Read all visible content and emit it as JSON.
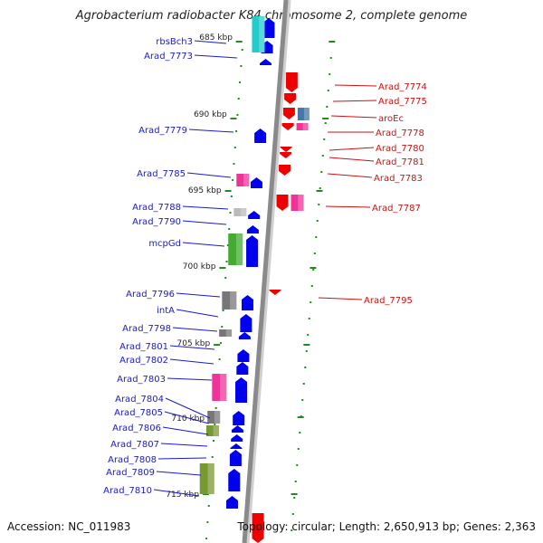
{
  "title": "Agrobacterium radiobacter K84 chromosome 2, complete genome",
  "footer": {
    "accession": "Accession: NC_011983",
    "summary": "Topology: circular; Length: 2,650,913 bp; Genes: 2,363"
  },
  "colors": {
    "backbone": "#8a8a8a",
    "forward_gene": "#0000ee",
    "reverse_gene": "#ee0000",
    "forward_label": "#1a1acc",
    "reverse_label": "#cc1111",
    "tick": "#228b22",
    "cds_magenta": "#ee3399",
    "cds_cyan": "#22cccc",
    "cds_green": "#44aa33",
    "cds_olive": "#779933",
    "cds_gray": "#777777",
    "cds_lightgray": "#bbbbbb",
    "cds_steelblue": "#4477aa"
  },
  "ruler": [
    "685 kbp",
    "690 kbp",
    "695 kbp",
    "700 kbp",
    "705 kbp",
    "710 kbp",
    "715 kbp"
  ],
  "forward_genes": [
    "rbsBch3",
    "Arad_7773",
    "Arad_7779",
    "Arad_7785",
    "Arad_7788",
    "Arad_7790",
    "mcpGd",
    "Arad_7796",
    "intA",
    "Arad_7798",
    "Arad_7801",
    "Arad_7802",
    "Arad_7803",
    "Arad_7804",
    "Arad_7805",
    "Arad_7806",
    "Arad_7807",
    "Arad_7808",
    "Arad_7809",
    "Arad_7810"
  ],
  "reverse_genes": [
    "Arad_7774",
    "Arad_7775",
    "aroEc",
    "Arad_7778",
    "Arad_7780",
    "Arad_7781",
    "Arad_7783",
    "Arad_7787",
    "Arad_7795"
  ]
}
